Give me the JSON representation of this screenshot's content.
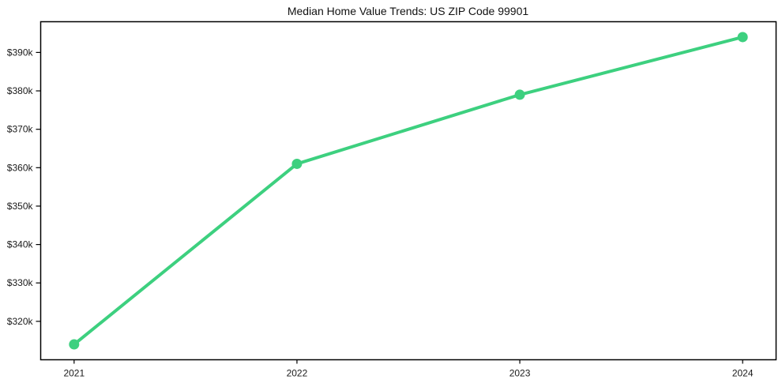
{
  "chart_data": {
    "type": "line",
    "title": "Median Home Value Trends: US ZIP Code 99901",
    "xlabel": "",
    "ylabel": "",
    "x": [
      2021,
      2022,
      2023,
      2024
    ],
    "x_tick_labels": [
      "2021",
      "2022",
      "2023",
      "2024"
    ],
    "series": [
      {
        "name": "Median Home Value",
        "values": [
          314000,
          361000,
          379000,
          394000
        ],
        "color": "#3dd07f"
      }
    ],
    "y_ticks": [
      {
        "value": 320000,
        "label": "$320k"
      },
      {
        "value": 330000,
        "label": "$330k"
      },
      {
        "value": 340000,
        "label": "$340k"
      },
      {
        "value": 350000,
        "label": "$350k"
      },
      {
        "value": 360000,
        "label": "$360k"
      },
      {
        "value": 370000,
        "label": "$370k"
      },
      {
        "value": 380000,
        "label": "$380k"
      },
      {
        "value": 390000,
        "label": "$390k"
      }
    ],
    "xlim": [
      2020.85,
      2024.15
    ],
    "ylim": [
      310000,
      398000
    ],
    "grid": false,
    "legend": "none"
  },
  "colors": {
    "background": "#ffffff",
    "axis": "#000000",
    "tick_text": "#1a1a1a",
    "title_text": "#111111"
  }
}
